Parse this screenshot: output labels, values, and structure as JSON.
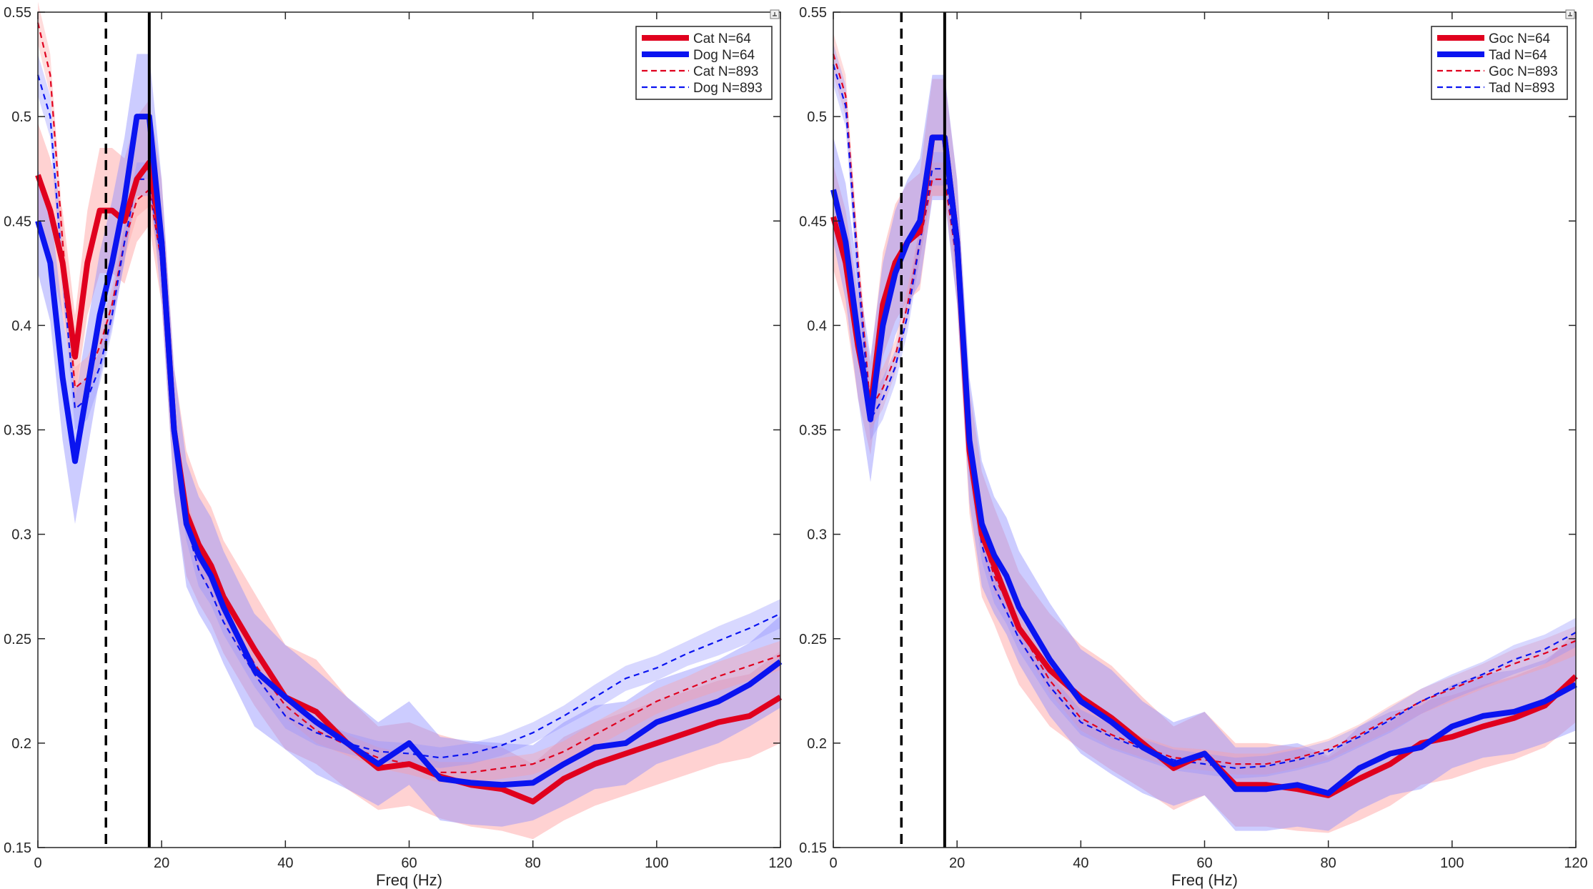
{
  "colors": {
    "red": "#e0001e",
    "blue": "#0a14f0",
    "red_band": "#ff9c9c",
    "blue_band": "#8f8fff",
    "axis": "#262626"
  },
  "chart_data": [
    {
      "type": "line",
      "title": "",
      "xlabel": "Freq (Hz)",
      "ylabel": "",
      "xlim": [
        0,
        120
      ],
      "ylim": [
        0.15,
        0.55
      ],
      "xticks": [
        0,
        20,
        40,
        60,
        80,
        100,
        120
      ],
      "yticks": [
        0.15,
        0.2,
        0.25,
        0.3,
        0.35,
        0.4,
        0.45,
        0.5,
        0.55
      ],
      "grid": false,
      "legend_position": "top-right",
      "vlines": [
        {
          "x": 11,
          "style": "dashed"
        },
        {
          "x": 18,
          "style": "solid"
        }
      ],
      "series": [
        {
          "name": "Cat N=64",
          "color": "red",
          "style": "thick",
          "x": [
            0,
            2,
            4,
            6,
            8,
            10,
            12,
            14,
            16,
            18,
            20,
            22,
            24,
            26,
            28,
            30,
            35,
            40,
            45,
            50,
            55,
            60,
            65,
            70,
            75,
            80,
            85,
            90,
            95,
            100,
            105,
            110,
            115,
            120
          ],
          "y": [
            0.472,
            0.455,
            0.43,
            0.385,
            0.43,
            0.455,
            0.455,
            0.45,
            0.47,
            0.478,
            0.44,
            0.35,
            0.31,
            0.295,
            0.285,
            0.27,
            0.245,
            0.222,
            0.215,
            0.2,
            0.188,
            0.19,
            0.184,
            0.18,
            0.178,
            0.172,
            0.183,
            0.19,
            0.195,
            0.2,
            0.205,
            0.21,
            0.213,
            0.222
          ],
          "band": [
            0.025,
            0.025,
            0.025,
            0.02,
            0.025,
            0.03,
            0.03,
            0.03,
            0.03,
            0.03,
            0.03,
            0.03,
            0.03,
            0.028,
            0.028,
            0.027,
            0.027,
            0.025,
            0.025,
            0.022,
            0.02,
            0.02,
            0.02,
            0.02,
            0.02,
            0.018,
            0.02,
            0.02,
            0.02,
            0.02,
            0.02,
            0.02,
            0.02,
            0.022
          ]
        },
        {
          "name": "Dog N=64",
          "color": "blue",
          "style": "thick",
          "x": [
            0,
            2,
            4,
            6,
            8,
            10,
            12,
            14,
            16,
            18,
            20,
            22,
            24,
            26,
            28,
            30,
            35,
            40,
            45,
            50,
            55,
            60,
            65,
            70,
            75,
            80,
            85,
            90,
            95,
            100,
            105,
            110,
            115,
            120
          ],
          "y": [
            0.45,
            0.43,
            0.375,
            0.335,
            0.37,
            0.405,
            0.43,
            0.46,
            0.5,
            0.5,
            0.44,
            0.35,
            0.305,
            0.29,
            0.28,
            0.265,
            0.235,
            0.222,
            0.21,
            0.2,
            0.19,
            0.2,
            0.183,
            0.181,
            0.18,
            0.181,
            0.19,
            0.198,
            0.2,
            0.21,
            0.215,
            0.22,
            0.228,
            0.239
          ],
          "band": [
            0.025,
            0.028,
            0.03,
            0.03,
            0.03,
            0.03,
            0.03,
            0.03,
            0.03,
            0.03,
            0.03,
            0.03,
            0.03,
            0.028,
            0.028,
            0.027,
            0.027,
            0.025,
            0.025,
            0.022,
            0.02,
            0.02,
            0.02,
            0.02,
            0.02,
            0.018,
            0.02,
            0.02,
            0.02,
            0.02,
            0.02,
            0.02,
            0.02,
            0.022
          ]
        },
        {
          "name": "Cat N=893",
          "color": "red",
          "style": "dashed",
          "x": [
            0,
            2,
            4,
            6,
            8,
            10,
            12,
            14,
            16,
            18,
            20,
            22,
            24,
            26,
            28,
            30,
            35,
            40,
            45,
            50,
            55,
            60,
            65,
            70,
            75,
            80,
            85,
            90,
            95,
            100,
            105,
            110,
            115,
            120
          ],
          "y": [
            0.545,
            0.52,
            0.44,
            0.37,
            0.375,
            0.39,
            0.41,
            0.44,
            0.46,
            0.465,
            0.43,
            0.35,
            0.31,
            0.29,
            0.278,
            0.263,
            0.238,
            0.218,
            0.206,
            0.199,
            0.193,
            0.19,
            0.186,
            0.186,
            0.188,
            0.19,
            0.196,
            0.204,
            0.212,
            0.22,
            0.226,
            0.232,
            0.237,
            0.242
          ],
          "band": [
            0.01,
            0.01,
            0.01,
            0.01,
            0.01,
            0.008,
            0.008,
            0.008,
            0.008,
            0.008,
            0.008,
            0.008,
            0.008,
            0.008,
            0.006,
            0.006,
            0.006,
            0.006,
            0.006,
            0.005,
            0.005,
            0.005,
            0.005,
            0.005,
            0.005,
            0.005,
            0.005,
            0.006,
            0.006,
            0.006,
            0.006,
            0.007,
            0.007,
            0.007
          ]
        },
        {
          "name": "Dog N=893",
          "color": "blue",
          "style": "dashed",
          "x": [
            0,
            2,
            4,
            6,
            8,
            10,
            12,
            14,
            16,
            18,
            20,
            22,
            24,
            26,
            28,
            30,
            35,
            40,
            45,
            50,
            55,
            60,
            65,
            70,
            75,
            80,
            85,
            90,
            95,
            100,
            105,
            110,
            115,
            120
          ],
          "y": [
            0.52,
            0.5,
            0.425,
            0.36,
            0.365,
            0.38,
            0.405,
            0.44,
            0.47,
            0.47,
            0.43,
            0.345,
            0.305,
            0.283,
            0.272,
            0.258,
            0.233,
            0.213,
            0.205,
            0.2,
            0.196,
            0.195,
            0.193,
            0.195,
            0.199,
            0.205,
            0.213,
            0.222,
            0.231,
            0.236,
            0.243,
            0.249,
            0.255,
            0.262
          ],
          "band": [
            0.01,
            0.01,
            0.01,
            0.01,
            0.01,
            0.008,
            0.008,
            0.008,
            0.008,
            0.008,
            0.008,
            0.008,
            0.008,
            0.008,
            0.006,
            0.006,
            0.006,
            0.006,
            0.006,
            0.005,
            0.005,
            0.005,
            0.005,
            0.005,
            0.005,
            0.005,
            0.005,
            0.006,
            0.006,
            0.006,
            0.006,
            0.007,
            0.007,
            0.007
          ]
        }
      ]
    },
    {
      "type": "line",
      "title": "",
      "xlabel": "Freq (Hz)",
      "ylabel": "",
      "xlim": [
        0,
        120
      ],
      "ylim": [
        0.15,
        0.55
      ],
      "xticks": [
        0,
        20,
        40,
        60,
        80,
        100,
        120
      ],
      "yticks": [
        0.15,
        0.2,
        0.25,
        0.3,
        0.35,
        0.4,
        0.45,
        0.5,
        0.55
      ],
      "grid": false,
      "legend_position": "top-right",
      "vlines": [
        {
          "x": 11,
          "style": "dashed"
        },
        {
          "x": 18,
          "style": "solid"
        }
      ],
      "series": [
        {
          "name": "Goc N=64",
          "color": "red",
          "style": "thick",
          "x": [
            0,
            2,
            4,
            6,
            8,
            10,
            12,
            14,
            16,
            18,
            20,
            22,
            24,
            26,
            28,
            30,
            35,
            40,
            45,
            50,
            55,
            60,
            65,
            70,
            75,
            80,
            85,
            90,
            95,
            100,
            105,
            110,
            115,
            120
          ],
          "y": [
            0.452,
            0.43,
            0.39,
            0.36,
            0.41,
            0.43,
            0.44,
            0.445,
            0.49,
            0.49,
            0.44,
            0.34,
            0.3,
            0.285,
            0.27,
            0.255,
            0.235,
            0.222,
            0.212,
            0.2,
            0.188,
            0.195,
            0.18,
            0.18,
            0.178,
            0.175,
            0.183,
            0.19,
            0.2,
            0.203,
            0.208,
            0.212,
            0.218,
            0.232
          ],
          "band": [
            0.025,
            0.025,
            0.025,
            0.022,
            0.025,
            0.028,
            0.028,
            0.028,
            0.028,
            0.028,
            0.03,
            0.03,
            0.03,
            0.028,
            0.028,
            0.027,
            0.027,
            0.025,
            0.025,
            0.022,
            0.02,
            0.02,
            0.02,
            0.02,
            0.02,
            0.018,
            0.02,
            0.02,
            0.02,
            0.02,
            0.02,
            0.02,
            0.02,
            0.022
          ]
        },
        {
          "name": "Tad N=64",
          "color": "blue",
          "style": "thick",
          "x": [
            0,
            2,
            4,
            6,
            8,
            10,
            12,
            14,
            16,
            18,
            20,
            22,
            24,
            26,
            28,
            30,
            35,
            40,
            45,
            50,
            55,
            60,
            65,
            70,
            75,
            80,
            85,
            90,
            95,
            100,
            105,
            110,
            115,
            120
          ],
          "y": [
            0.465,
            0.44,
            0.395,
            0.355,
            0.4,
            0.425,
            0.44,
            0.45,
            0.49,
            0.49,
            0.44,
            0.345,
            0.305,
            0.29,
            0.28,
            0.265,
            0.24,
            0.22,
            0.21,
            0.198,
            0.19,
            0.195,
            0.178,
            0.178,
            0.18,
            0.176,
            0.188,
            0.195,
            0.198,
            0.208,
            0.213,
            0.215,
            0.22,
            0.228
          ],
          "band": [
            0.025,
            0.028,
            0.03,
            0.03,
            0.03,
            0.03,
            0.03,
            0.03,
            0.03,
            0.03,
            0.03,
            0.03,
            0.03,
            0.028,
            0.028,
            0.027,
            0.027,
            0.025,
            0.025,
            0.022,
            0.02,
            0.02,
            0.02,
            0.02,
            0.02,
            0.018,
            0.02,
            0.02,
            0.02,
            0.02,
            0.02,
            0.02,
            0.02,
            0.022
          ]
        },
        {
          "name": "Goc N=893",
          "color": "red",
          "style": "dashed",
          "x": [
            0,
            2,
            4,
            6,
            8,
            10,
            12,
            14,
            16,
            18,
            20,
            22,
            24,
            26,
            28,
            30,
            35,
            40,
            45,
            50,
            55,
            60,
            65,
            70,
            75,
            80,
            85,
            90,
            95,
            100,
            105,
            110,
            115,
            120
          ],
          "y": [
            0.53,
            0.51,
            0.43,
            0.36,
            0.37,
            0.385,
            0.41,
            0.44,
            0.47,
            0.47,
            0.43,
            0.34,
            0.3,
            0.28,
            0.268,
            0.255,
            0.23,
            0.212,
            0.204,
            0.198,
            0.193,
            0.192,
            0.19,
            0.19,
            0.193,
            0.197,
            0.204,
            0.212,
            0.22,
            0.226,
            0.232,
            0.238,
            0.243,
            0.249
          ],
          "band": [
            0.01,
            0.01,
            0.01,
            0.01,
            0.01,
            0.008,
            0.008,
            0.008,
            0.008,
            0.008,
            0.008,
            0.008,
            0.008,
            0.008,
            0.006,
            0.006,
            0.006,
            0.006,
            0.006,
            0.005,
            0.005,
            0.005,
            0.005,
            0.005,
            0.005,
            0.005,
            0.005,
            0.006,
            0.006,
            0.006,
            0.006,
            0.007,
            0.007,
            0.007
          ]
        },
        {
          "name": "Tad N=893",
          "color": "blue",
          "style": "dashed",
          "x": [
            0,
            2,
            4,
            6,
            8,
            10,
            12,
            14,
            16,
            18,
            20,
            22,
            24,
            26,
            28,
            30,
            35,
            40,
            45,
            50,
            55,
            60,
            65,
            70,
            75,
            80,
            85,
            90,
            95,
            100,
            105,
            110,
            115,
            120
          ],
          "y": [
            0.525,
            0.505,
            0.425,
            0.355,
            0.365,
            0.38,
            0.405,
            0.44,
            0.475,
            0.475,
            0.43,
            0.335,
            0.295,
            0.275,
            0.263,
            0.25,
            0.227,
            0.21,
            0.203,
            0.197,
            0.192,
            0.19,
            0.188,
            0.189,
            0.192,
            0.196,
            0.203,
            0.211,
            0.22,
            0.227,
            0.233,
            0.24,
            0.245,
            0.253
          ],
          "band": [
            0.01,
            0.01,
            0.01,
            0.01,
            0.01,
            0.008,
            0.008,
            0.008,
            0.008,
            0.008,
            0.008,
            0.008,
            0.008,
            0.008,
            0.006,
            0.006,
            0.006,
            0.006,
            0.006,
            0.005,
            0.005,
            0.005,
            0.005,
            0.005,
            0.005,
            0.005,
            0.005,
            0.006,
            0.006,
            0.006,
            0.006,
            0.007,
            0.007,
            0.007
          ]
        }
      ]
    }
  ]
}
